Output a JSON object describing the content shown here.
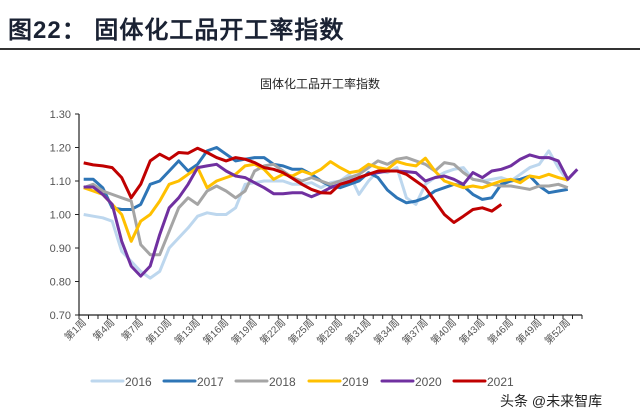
{
  "header": {
    "title": "图22：  固体化工品开工率指数"
  },
  "watermark": "头条 @未来智库",
  "chart_data": {
    "type": "line",
    "title": "固体化工品开工率指数",
    "xlabel": "",
    "ylabel": "",
    "ylim": [
      0.7,
      1.3
    ],
    "yticks": [
      "0.70",
      "0.80",
      "0.90",
      "1.00",
      "1.10",
      "1.20",
      "1.30"
    ],
    "x_categories_count": 53,
    "x_tick_labels": [
      "第1周",
      "第4周",
      "第7周",
      "第10周",
      "第13周",
      "第16周",
      "第19周",
      "第22周",
      "第25周",
      "第28周",
      "第31周",
      "第34周",
      "第37周",
      "第40周",
      "第43周",
      "第46周",
      "第49周",
      "第52周"
    ],
    "grid": false,
    "legend": "bottom",
    "series": [
      {
        "name": "2016",
        "color": "#bdd7ee",
        "values": [
          1.0,
          0.995,
          0.99,
          0.98,
          0.89,
          0.86,
          0.83,
          0.81,
          0.83,
          0.9,
          0.93,
          0.96,
          0.995,
          1.005,
          1.0,
          1.0,
          1.02,
          1.09,
          1.095,
          1.1,
          1.1,
          1.1,
          1.09,
          1.09,
          1.095,
          1.08,
          1.095,
          1.1,
          1.12,
          1.06,
          1.1,
          1.13,
          1.125,
          1.14,
          1.05,
          1.03,
          1.09,
          1.11,
          1.125,
          1.135,
          1.14,
          1.105,
          1.1,
          1.105,
          1.11,
          1.1,
          1.12,
          1.14,
          1.15,
          1.19,
          1.14,
          1.1
        ]
      },
      {
        "name": "2017",
        "color": "#2e75b6",
        "values": [
          1.105,
          1.105,
          1.08,
          1.02,
          1.015,
          1.015,
          1.03,
          1.09,
          1.1,
          1.13,
          1.16,
          1.13,
          1.15,
          1.19,
          1.2,
          1.18,
          1.16,
          1.165,
          1.17,
          1.17,
          1.15,
          1.145,
          1.135,
          1.135,
          1.12,
          1.1,
          1.085,
          1.08,
          1.09,
          1.1,
          1.125,
          1.11,
          1.073,
          1.05,
          1.035,
          1.04,
          1.05,
          1.07,
          1.08,
          1.09,
          1.085,
          1.06,
          1.045,
          1.05,
          1.09,
          1.1,
          1.105,
          1.115,
          1.085,
          1.065,
          1.07,
          1.075
        ]
      },
      {
        "name": "2018",
        "color": "#a5a5a5",
        "values": [
          1.08,
          1.09,
          1.07,
          1.06,
          1.05,
          1.04,
          0.91,
          0.88,
          0.88,
          0.95,
          1.02,
          1.05,
          1.03,
          1.07,
          1.085,
          1.07,
          1.05,
          1.07,
          1.13,
          1.145,
          1.15,
          1.13,
          1.11,
          1.1,
          1.11,
          1.1,
          1.09,
          1.1,
          1.11,
          1.12,
          1.14,
          1.16,
          1.15,
          1.165,
          1.17,
          1.16,
          1.15,
          1.13,
          1.155,
          1.15,
          1.125,
          1.105,
          1.1,
          1.09,
          1.085,
          1.085,
          1.08,
          1.075,
          1.085,
          1.085,
          1.09,
          1.08
        ]
      },
      {
        "name": "2019",
        "color": "#ffc000",
        "values": [
          1.08,
          1.07,
          1.06,
          1.03,
          1.0,
          0.92,
          0.98,
          1.0,
          1.04,
          1.09,
          1.1,
          1.12,
          1.14,
          1.08,
          1.1,
          1.11,
          1.12,
          1.145,
          1.15,
          1.135,
          1.105,
          1.12,
          1.115,
          1.13,
          1.12,
          1.135,
          1.158,
          1.14,
          1.125,
          1.13,
          1.15,
          1.14,
          1.135,
          1.158,
          1.15,
          1.145,
          1.168,
          1.13,
          1.1,
          1.09,
          1.08,
          1.085,
          1.08,
          1.09,
          1.1,
          1.105,
          1.095,
          1.115,
          1.11,
          1.12,
          1.11,
          1.103
        ]
      },
      {
        "name": "2020",
        "color": "#7030a0",
        "values": [
          1.082,
          1.082,
          1.06,
          1.03,
          0.92,
          0.846,
          0.816,
          0.846,
          0.94,
          1.02,
          1.05,
          1.09,
          1.14,
          1.145,
          1.15,
          1.13,
          1.115,
          1.11,
          1.095,
          1.08,
          1.062,
          1.062,
          1.065,
          1.065,
          1.053,
          1.065,
          1.08,
          1.09,
          1.1,
          1.11,
          1.12,
          1.125,
          1.13,
          1.13,
          1.128,
          1.125,
          1.1,
          1.11,
          1.115,
          1.105,
          1.09,
          1.125,
          1.11,
          1.13,
          1.135,
          1.145,
          1.165,
          1.178,
          1.17,
          1.17,
          1.16,
          1.105,
          1.135
        ]
      },
      {
        "name": "2021",
        "color": "#c00000",
        "values": [
          1.154,
          1.148,
          1.145,
          1.14,
          1.11,
          1.05,
          1.09,
          1.16,
          1.18,
          1.165,
          1.185,
          1.183,
          1.198,
          1.185,
          1.17,
          1.16,
          1.17,
          1.165,
          1.155,
          1.14,
          1.135,
          1.125,
          1.108,
          1.09,
          1.075,
          1.065,
          1.064,
          1.09,
          1.098,
          1.11,
          1.12,
          1.13,
          1.13,
          1.13,
          1.12,
          1.1,
          1.08,
          1.04,
          1.0,
          0.976,
          0.995,
          1.015,
          1.02,
          1.01,
          1.03
        ]
      }
    ]
  }
}
